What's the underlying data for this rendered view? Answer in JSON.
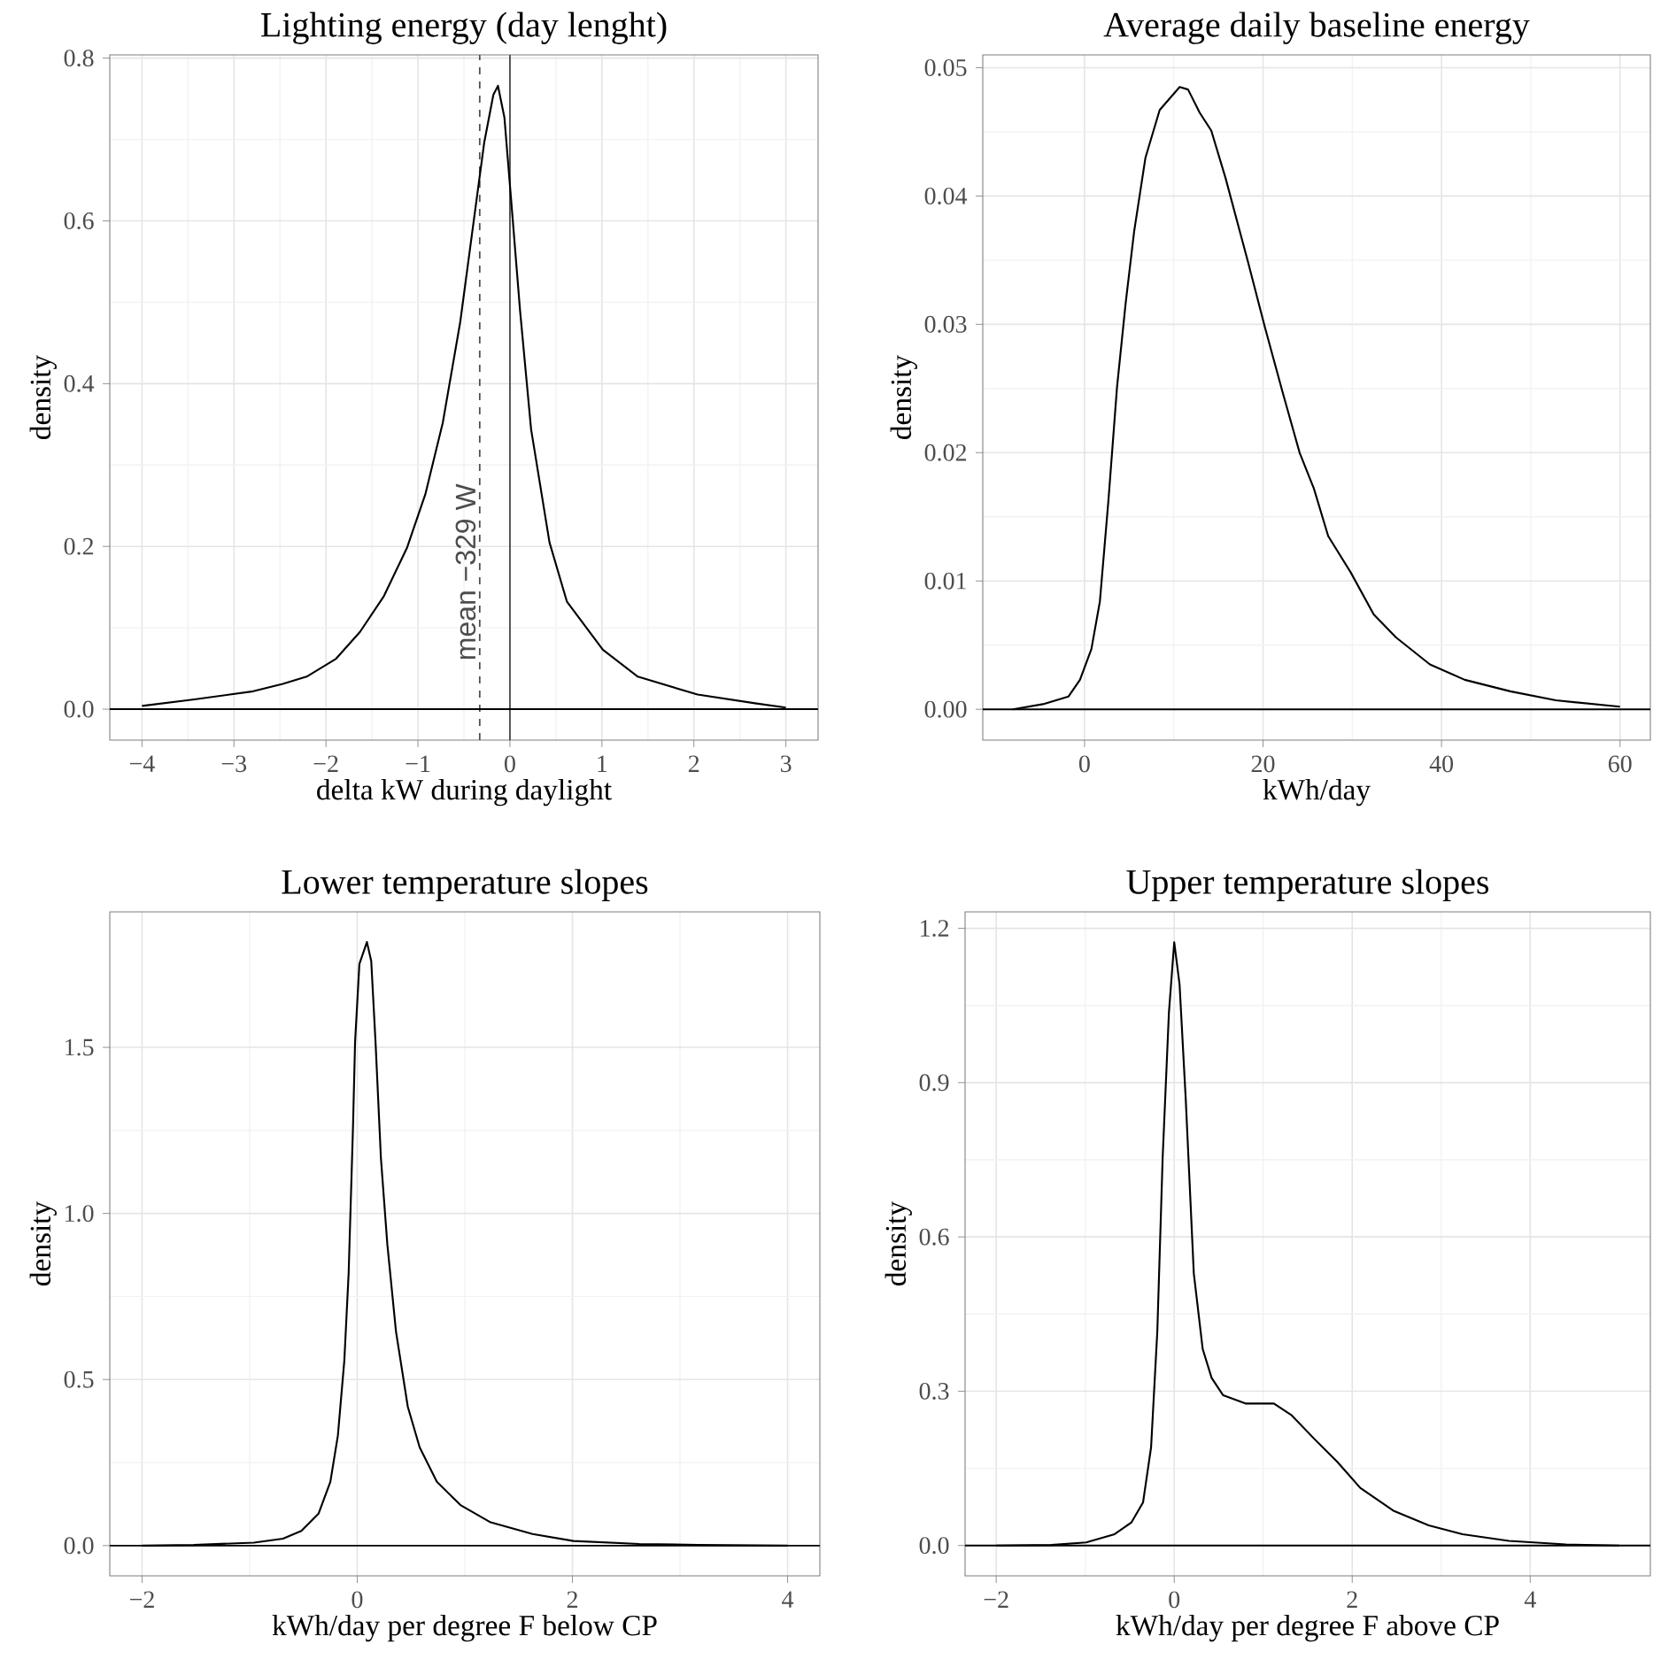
{
  "chart_data": [
    {
      "type": "line",
      "title": "Lighting energy (day lenght)",
      "xlabel": "delta kW during daylight",
      "ylabel": "density",
      "color": "#000000",
      "grid": true,
      "x": [
        -4,
        -3.43,
        -2.79,
        -2.47,
        -2.21,
        -1.89,
        -1.63,
        -1.37,
        -1.12,
        -0.92,
        -0.73,
        -0.54,
        -0.41,
        -0.28,
        -0.18,
        -0.13,
        -0.06,
        0.01,
        0.11,
        0.23,
        0.43,
        0.62,
        1.01,
        1.39,
        2.04,
        2.68,
        3
      ],
      "values": [
        0.004,
        0.012,
        0.022,
        0.031,
        0.04,
        0.062,
        0.095,
        0.139,
        0.198,
        0.264,
        0.352,
        0.476,
        0.586,
        0.696,
        0.755,
        0.766,
        0.727,
        0.63,
        0.49,
        0.344,
        0.205,
        0.132,
        0.073,
        0.04,
        0.018,
        0.007,
        0.002
      ],
      "xlim": [
        -4.35,
        3.35
      ],
      "ylim": [
        -0.038,
        0.804
      ],
      "xticks": [
        {
          "value": -4,
          "label": "−4"
        },
        {
          "value": -3,
          "label": "−3"
        },
        {
          "value": -2,
          "label": "−2"
        },
        {
          "value": -1,
          "label": "−1"
        },
        0,
        1,
        2,
        3
      ],
      "yticks": [
        {
          "value": 0,
          "label": "0.0"
        },
        0.2,
        0.4,
        0.6,
        0.8
      ],
      "ref_lines": [
        {
          "axis": "x",
          "value": -0.329,
          "label": "mean −329 W",
          "line_style": "dashed",
          "color": "#4d4d4d"
        },
        {
          "axis": "x",
          "value": 0,
          "color": "#4d4d4d"
        },
        {
          "axis": "y",
          "value": 0,
          "color": "#000000"
        }
      ]
    },
    {
      "type": "line",
      "title": "Average daily baseline energy",
      "xlabel": "kWh/day",
      "ylabel": "density",
      "color": "#000000",
      "grid": true,
      "x": [
        -8.04,
        -4.66,
        -1.79,
        -0.51,
        0.77,
        1.72,
        2.68,
        3.64,
        4.6,
        5.55,
        6.83,
        8.42,
        10.66,
        11.6,
        12.9,
        14.2,
        15.8,
        18.3,
        20.2,
        22.2,
        24.1,
        25.7,
        27.3,
        29.8,
        32.4,
        34.9,
        38.7,
        42.6,
        47.7,
        52.8,
        60
      ],
      "values": [
        0,
        0.0004,
        0.001,
        0.0023,
        0.0047,
        0.0084,
        0.0163,
        0.0251,
        0.0316,
        0.0372,
        0.043,
        0.0467,
        0.0485,
        0.0483,
        0.0465,
        0.0451,
        0.0414,
        0.0349,
        0.0298,
        0.0247,
        0.02,
        0.0172,
        0.0135,
        0.0107,
        0.0074,
        0.0056,
        0.0035,
        0.0023,
        0.0014,
        0.0007,
        0.0002
      ],
      "xlim": [
        -11.4,
        63.4
      ],
      "ylim": [
        -0.0024,
        0.051
      ],
      "xticks": [
        0,
        20,
        40,
        60
      ],
      "ref_lines": [
        {
          "axis": "y",
          "value": 0,
          "color": "#000000"
        }
      ],
      "yticks": [
        {
          "value": 0,
          "label": "0.00"
        },
        {
          "value": 0.01,
          "label": "0.01"
        },
        {
          "value": 0.02,
          "label": "0.02"
        },
        {
          "value": 0.03,
          "label": "0.03"
        },
        {
          "value": 0.04,
          "label": "0.04"
        },
        {
          "value": 0.05,
          "label": "0.05"
        }
      ]
    },
    {
      "type": "line",
      "title": "Lower temperature slopes",
      "ref_lines": [
        {
          "axis": "y",
          "value": 0,
          "color": "#000000"
        }
      ],
      "xlabel": "kWh/day per degree F below CP",
      "ylabel": "density",
      "color": "#000000",
      "grid": true,
      "x": [
        -2,
        -1.52,
        -0.96,
        -0.69,
        -0.52,
        -0.36,
        -0.25,
        -0.18,
        -0.12,
        -0.08,
        -0.04,
        -0.02,
        0.02,
        0.09,
        0.13,
        0.17,
        0.22,
        0.28,
        0.36,
        0.47,
        0.58,
        0.74,
        0.96,
        1.24,
        1.63,
        2.01,
        2.62,
        3.17,
        4
      ],
      "values": [
        0,
        0.002,
        0.009,
        0.021,
        0.044,
        0.096,
        0.192,
        0.331,
        0.557,
        0.819,
        1.254,
        1.516,
        1.751,
        1.817,
        1.76,
        1.516,
        1.167,
        0.906,
        0.645,
        0.418,
        0.296,
        0.192,
        0.122,
        0.07,
        0.035,
        0.014,
        0.005,
        0.002,
        0
      ],
      "xlim": [
        -2.3,
        4.3
      ],
      "ylim": [
        -0.091,
        1.908
      ],
      "xticks": [
        {
          "value": -2,
          "label": "−2"
        },
        0,
        2,
        4
      ],
      "yticks": [
        {
          "value": 0,
          "label": "0.0"
        },
        0.5,
        {
          "value": 1,
          "label": "1.0"
        },
        1.5
      ]
    },
    {
      "type": "line",
      "title": "Upper temperature slopes",
      "ref_lines": [
        {
          "axis": "y",
          "value": 0,
          "color": "#000000"
        }
      ],
      "xlabel": "kWh/day per degree F above CP",
      "ylabel": "density",
      "color": "#000000",
      "grid": true,
      "x": [
        -2,
        -1.38,
        -0.99,
        -0.67,
        -0.48,
        -0.35,
        -0.26,
        -0.19,
        -0.13,
        -0.06,
        0,
        0.06,
        0.13,
        0.22,
        0.32,
        0.42,
        0.55,
        0.8,
        1.12,
        1.32,
        1.57,
        1.83,
        2.09,
        2.47,
        2.86,
        3.24,
        3.76,
        4.4,
        5
      ],
      "values": [
        0,
        0.001,
        0.006,
        0.022,
        0.045,
        0.084,
        0.191,
        0.416,
        0.754,
        1.035,
        1.173,
        1.091,
        0.866,
        0.529,
        0.382,
        0.326,
        0.292,
        0.276,
        0.276,
        0.253,
        0.208,
        0.163,
        0.112,
        0.067,
        0.039,
        0.022,
        0.009,
        0.002,
        0
      ],
      "xlim": [
        -2.35,
        5.35
      ],
      "ylim": [
        -0.059,
        1.232
      ],
      "xticks": [
        {
          "value": -2,
          "label": "−2"
        },
        0,
        2,
        4
      ],
      "yticks": [
        {
          "value": 0,
          "label": "0.0"
        },
        0.3,
        0.6,
        0.9,
        1.2
      ]
    }
  ]
}
